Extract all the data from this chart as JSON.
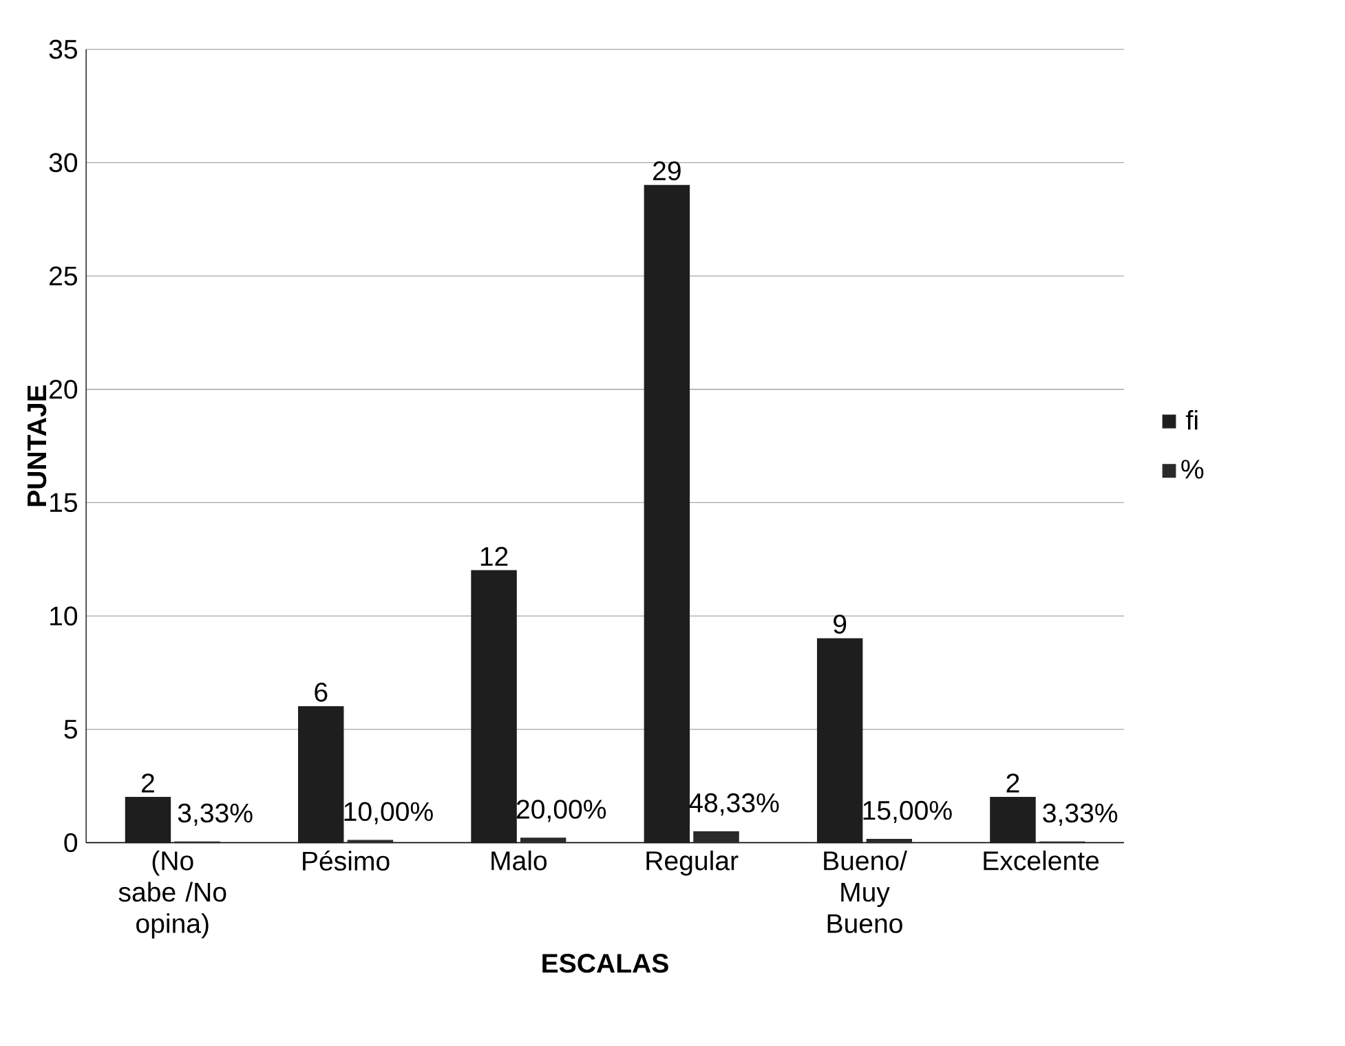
{
  "chart_data": {
    "type": "bar",
    "xlabel": "ESCALAS",
    "ylabel": "PUNTAJE",
    "categories": [
      "(No sabe /No opina)",
      "Pésimo",
      "Malo",
      "Regular",
      "Bueno/ Muy Bueno",
      "Excelente"
    ],
    "series": [
      {
        "name": "fi",
        "color": "#1e1e1e",
        "values": [
          2,
          6,
          12,
          29,
          9,
          2
        ],
        "value_labels": [
          "2",
          "6",
          "12",
          "29",
          "9",
          "2"
        ]
      },
      {
        "name": "%",
        "color": "#2a2a2a",
        "values": [
          0.0333,
          0.1,
          0.2,
          0.4833,
          0.15,
          0.0333
        ],
        "value_labels": [
          "3,33%",
          "10,00%",
          "20,00%",
          "48,33%",
          "15,00%",
          "3,33%"
        ]
      }
    ],
    "ylim": [
      0,
      35
    ],
    "yticks": [
      0,
      5,
      10,
      15,
      20,
      25,
      30,
      35
    ],
    "grid": "y",
    "legend": "right"
  }
}
